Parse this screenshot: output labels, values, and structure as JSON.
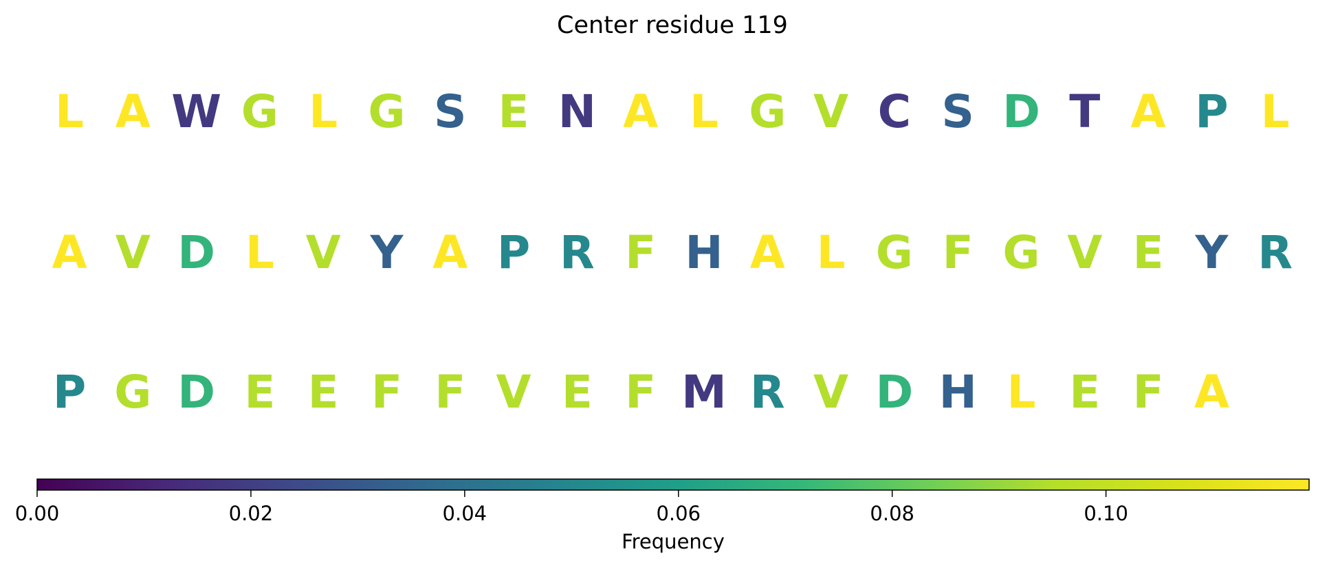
{
  "chart_data": {
    "type": "sequence-logo",
    "title": "Center residue 119",
    "rows": [
      {
        "letters": [
          "L",
          "A",
          "W",
          "G",
          "L",
          "G",
          "S",
          "E",
          "N",
          "A",
          "L",
          "G",
          "V",
          "C",
          "S",
          "D",
          "T",
          "A",
          "P",
          "L"
        ],
        "frequencies": [
          0.12,
          0.12,
          0.018,
          0.095,
          0.12,
          0.095,
          0.033,
          0.095,
          0.018,
          0.12,
          0.12,
          0.095,
          0.095,
          0.018,
          0.033,
          0.07,
          0.018,
          0.12,
          0.05,
          0.12
        ]
      },
      {
        "letters": [
          "A",
          "V",
          "D",
          "L",
          "V",
          "Y",
          "A",
          "P",
          "R",
          "F",
          "H",
          "A",
          "L",
          "G",
          "F",
          "G",
          "V",
          "E",
          "Y",
          "R"
        ],
        "frequencies": [
          0.12,
          0.095,
          0.07,
          0.12,
          0.095,
          0.033,
          0.12,
          0.05,
          0.05,
          0.095,
          0.033,
          0.12,
          0.12,
          0.095,
          0.095,
          0.095,
          0.095,
          0.095,
          0.033,
          0.05
        ]
      },
      {
        "letters": [
          "P",
          "G",
          "D",
          "E",
          "E",
          "F",
          "F",
          "V",
          "E",
          "F",
          "M",
          "R",
          "V",
          "D",
          "H",
          "L",
          "E",
          "F",
          "A"
        ],
        "frequencies": [
          0.05,
          0.095,
          0.07,
          0.095,
          0.095,
          0.095,
          0.095,
          0.095,
          0.095,
          0.095,
          0.018,
          0.05,
          0.095,
          0.07,
          0.033,
          0.12,
          0.095,
          0.095,
          0.12
        ]
      }
    ],
    "colorbar": {
      "label": "Frequency",
      "range": [
        0,
        0.119
      ],
      "colormap": "viridis",
      "ticks": [
        0.0,
        0.02,
        0.04,
        0.06,
        0.08,
        0.1
      ],
      "tick_labels": [
        "0.00",
        "0.02",
        "0.04",
        "0.06",
        "0.08",
        "0.10"
      ]
    }
  }
}
